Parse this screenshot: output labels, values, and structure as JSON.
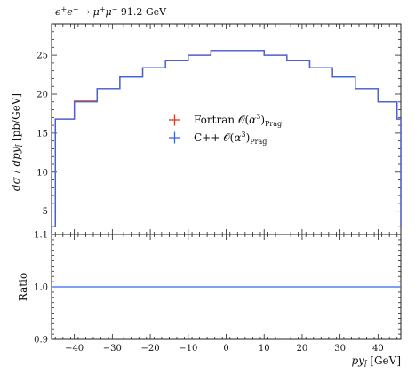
{
  "chart_data": [
    {
      "panel": "main",
      "type": "line",
      "title": "e⁺e⁻ → μ⁺μ⁻ 91.2 GeV",
      "xlabel": "",
      "ylabel": "dσ / dpy_l̄ [pb/GeV]",
      "xlim": [
        -46,
        46
      ],
      "ylim": [
        2,
        29
      ],
      "yticks": [
        5,
        10,
        15,
        20,
        25
      ],
      "grid": false,
      "legend_position": "center",
      "bin_edges": [
        -46,
        -45,
        -40,
        -34,
        -28,
        -22,
        -16,
        -10,
        -4,
        4,
        10,
        16,
        22,
        28,
        34,
        40,
        45,
        46
      ],
      "series": [
        {
          "name": "Fortran 𝒪(α³)Prag",
          "color": "#ee3311",
          "values": [
            3.0,
            16.8,
            19.1,
            20.7,
            22.2,
            23.4,
            24.3,
            25.0,
            25.6,
            25.6,
            25.0,
            24.3,
            23.4,
            22.2,
            20.7,
            19.0,
            16.8,
            3.0
          ]
        },
        {
          "name": "C++ 𝒪(α³)Prag",
          "color": "#3366ee",
          "values": [
            3.0,
            16.8,
            19.0,
            20.7,
            22.2,
            23.4,
            24.3,
            25.0,
            25.6,
            25.6,
            25.0,
            24.3,
            23.4,
            22.2,
            20.7,
            19.0,
            16.8,
            3.0
          ]
        }
      ]
    },
    {
      "panel": "ratio",
      "type": "line",
      "ylabel": "Ratio",
      "xlabel": "py_l̄ [GeV]",
      "xlim": [
        -46,
        46
      ],
      "xticks": [
        -40,
        -30,
        -20,
        -10,
        0,
        10,
        20,
        30,
        40
      ],
      "ylim": [
        0.9,
        1.1
      ],
      "yticks": [
        0.9,
        1.0,
        1.1
      ],
      "grid": false,
      "series": [
        {
          "name": "Ratio",
          "color": "#3366ee",
          "values": [
            1.0,
            1.0
          ]
        }
      ]
    }
  ],
  "labels": {
    "title": "e⁺e⁻ → μ⁺μ⁻ 91.2 GeV",
    "ylabel_main": "dσ / dpy_l̄ [pb/GeV]",
    "ylabel_ratio": "Ratio",
    "xlabel": "py_l̄ [GeV]",
    "legend": [
      "Fortran 𝒪(α³)Prag",
      "C++ 𝒪(α³)Prag"
    ]
  }
}
